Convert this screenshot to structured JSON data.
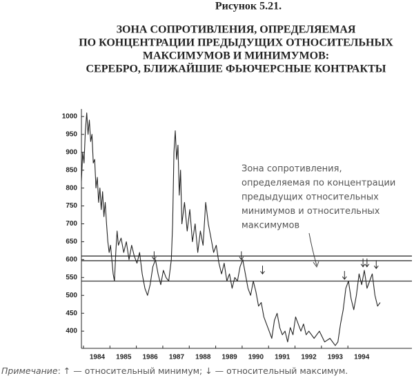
{
  "chart_data": {
    "type": "line",
    "figure_label": "Рисунок 5.21.",
    "title_lines": [
      "ЗОНА СОПРОТИВЛЕНИЯ, ОПРЕДЕЛЯЕМАЯ",
      "ПО КОНЦЕНТРАЦИИ ПРЕДЫДУЩИХ ОТНОСИТЕЛЬНЫХ",
      "МАКСИМУМОВ И МИНИМУМОВ:",
      "СЕРЕБРО, БЛИЖАЙШИЕ ФЬЮЧЕРСНЫЕ КОНТРАКТЫ"
    ],
    "annotation_lines": [
      "Зона сопротивления,",
      "определяемая по концентрации",
      "предыдущих относительных",
      "минимумов и относительных",
      "максимумов"
    ],
    "note_label": "Примечание",
    "note_text": ": ↑ — относительный минимум; ↓ — относительный максимум.",
    "color": "#222222",
    "x": [
      1983.4,
      1983.45,
      1983.5,
      1983.55,
      1983.6,
      1983.65,
      1983.7,
      1983.75,
      1983.8,
      1983.85,
      1983.9,
      1983.95,
      1984.0,
      1984.05,
      1984.1,
      1984.15,
      1984.2,
      1984.25,
      1984.3,
      1984.35,
      1984.4,
      1984.45,
      1984.5,
      1984.55,
      1984.6,
      1984.65,
      1984.7,
      1984.75,
      1984.8,
      1984.9,
      1985.0,
      1985.1,
      1985.2,
      1985.3,
      1985.4,
      1985.5,
      1985.6,
      1985.7,
      1985.8,
      1985.9,
      1986.0,
      1986.1,
      1986.2,
      1986.3,
      1986.4,
      1986.5,
      1986.6,
      1986.7,
      1986.8,
      1986.85,
      1986.9,
      1986.95,
      1987.0,
      1987.05,
      1987.1,
      1987.15,
      1987.2,
      1987.3,
      1987.4,
      1987.5,
      1987.6,
      1987.7,
      1987.8,
      1987.9,
      1988.0,
      1988.1,
      1988.2,
      1988.3,
      1988.4,
      1988.5,
      1988.6,
      1988.7,
      1988.8,
      1988.9,
      1989.0,
      1989.1,
      1989.2,
      1989.3,
      1989.4,
      1989.5,
      1989.6,
      1989.7,
      1989.8,
      1989.9,
      1990.0,
      1990.1,
      1990.2,
      1990.3,
      1990.4,
      1990.5,
      1990.6,
      1990.7,
      1990.8,
      1990.9,
      1991.0,
      1991.1,
      1991.2,
      1991.3,
      1991.4,
      1991.5,
      1991.6,
      1991.7,
      1991.8,
      1991.9,
      1992.0,
      1992.2,
      1992.4,
      1992.6,
      1992.8,
      1993.0,
      1993.1,
      1993.2,
      1993.3,
      1993.4,
      1993.5,
      1993.6,
      1993.7,
      1993.8,
      1993.9,
      1994.0,
      1994.1,
      1994.2,
      1994.3,
      1994.4,
      1994.5,
      1994.6,
      1994.7
    ],
    "values": [
      820,
      900,
      870,
      960,
      1010,
      950,
      990,
      930,
      950,
      870,
      880,
      800,
      830,
      760,
      800,
      740,
      790,
      720,
      760,
      700,
      650,
      620,
      640,
      600,
      560,
      540,
      620,
      680,
      640,
      660,
      620,
      650,
      600,
      640,
      610,
      590,
      620,
      560,
      520,
      500,
      530,
      580,
      600,
      560,
      530,
      570,
      550,
      540,
      600,
      700,
      900,
      960,
      880,
      920,
      780,
      850,
      700,
      760,
      680,
      740,
      650,
      700,
      620,
      680,
      640,
      760,
      700,
      660,
      620,
      640,
      590,
      560,
      590,
      540,
      560,
      520,
      550,
      540,
      580,
      600,
      560,
      520,
      500,
      540,
      510,
      470,
      480,
      440,
      420,
      400,
      380,
      430,
      450,
      410,
      390,
      400,
      370,
      410,
      390,
      440,
      420,
      400,
      420,
      390,
      400,
      380,
      400,
      370,
      380,
      360,
      370,
      420,
      460,
      520,
      540,
      490,
      460,
      500,
      560,
      530,
      570,
      520,
      540,
      560,
      500,
      470,
      480
    ],
    "hlines": [
      610,
      597,
      540
    ],
    "arrows": [
      {
        "x": 1986.15,
        "y": 600
      },
      {
        "x": 1989.45,
        "y": 600
      },
      {
        "x": 1990.25,
        "y": 560
      },
      {
        "x": 1993.35,
        "y": 545
      },
      {
        "x": 1994.05,
        "y": 580
      },
      {
        "x": 1994.2,
        "y": 580
      },
      {
        "x": 1994.55,
        "y": 575
      }
    ],
    "xlim": [
      1983.4,
      1995.9
    ],
    "ylim": [
      352,
      1021
    ],
    "xticks": [
      1984,
      1985,
      1986,
      1987,
      1988,
      1989,
      1990,
      1991,
      1992,
      1993,
      1994
    ],
    "yticks": [
      400,
      450,
      500,
      550,
      600,
      650,
      700,
      750,
      800,
      850,
      900,
      950,
      1000
    ]
  }
}
